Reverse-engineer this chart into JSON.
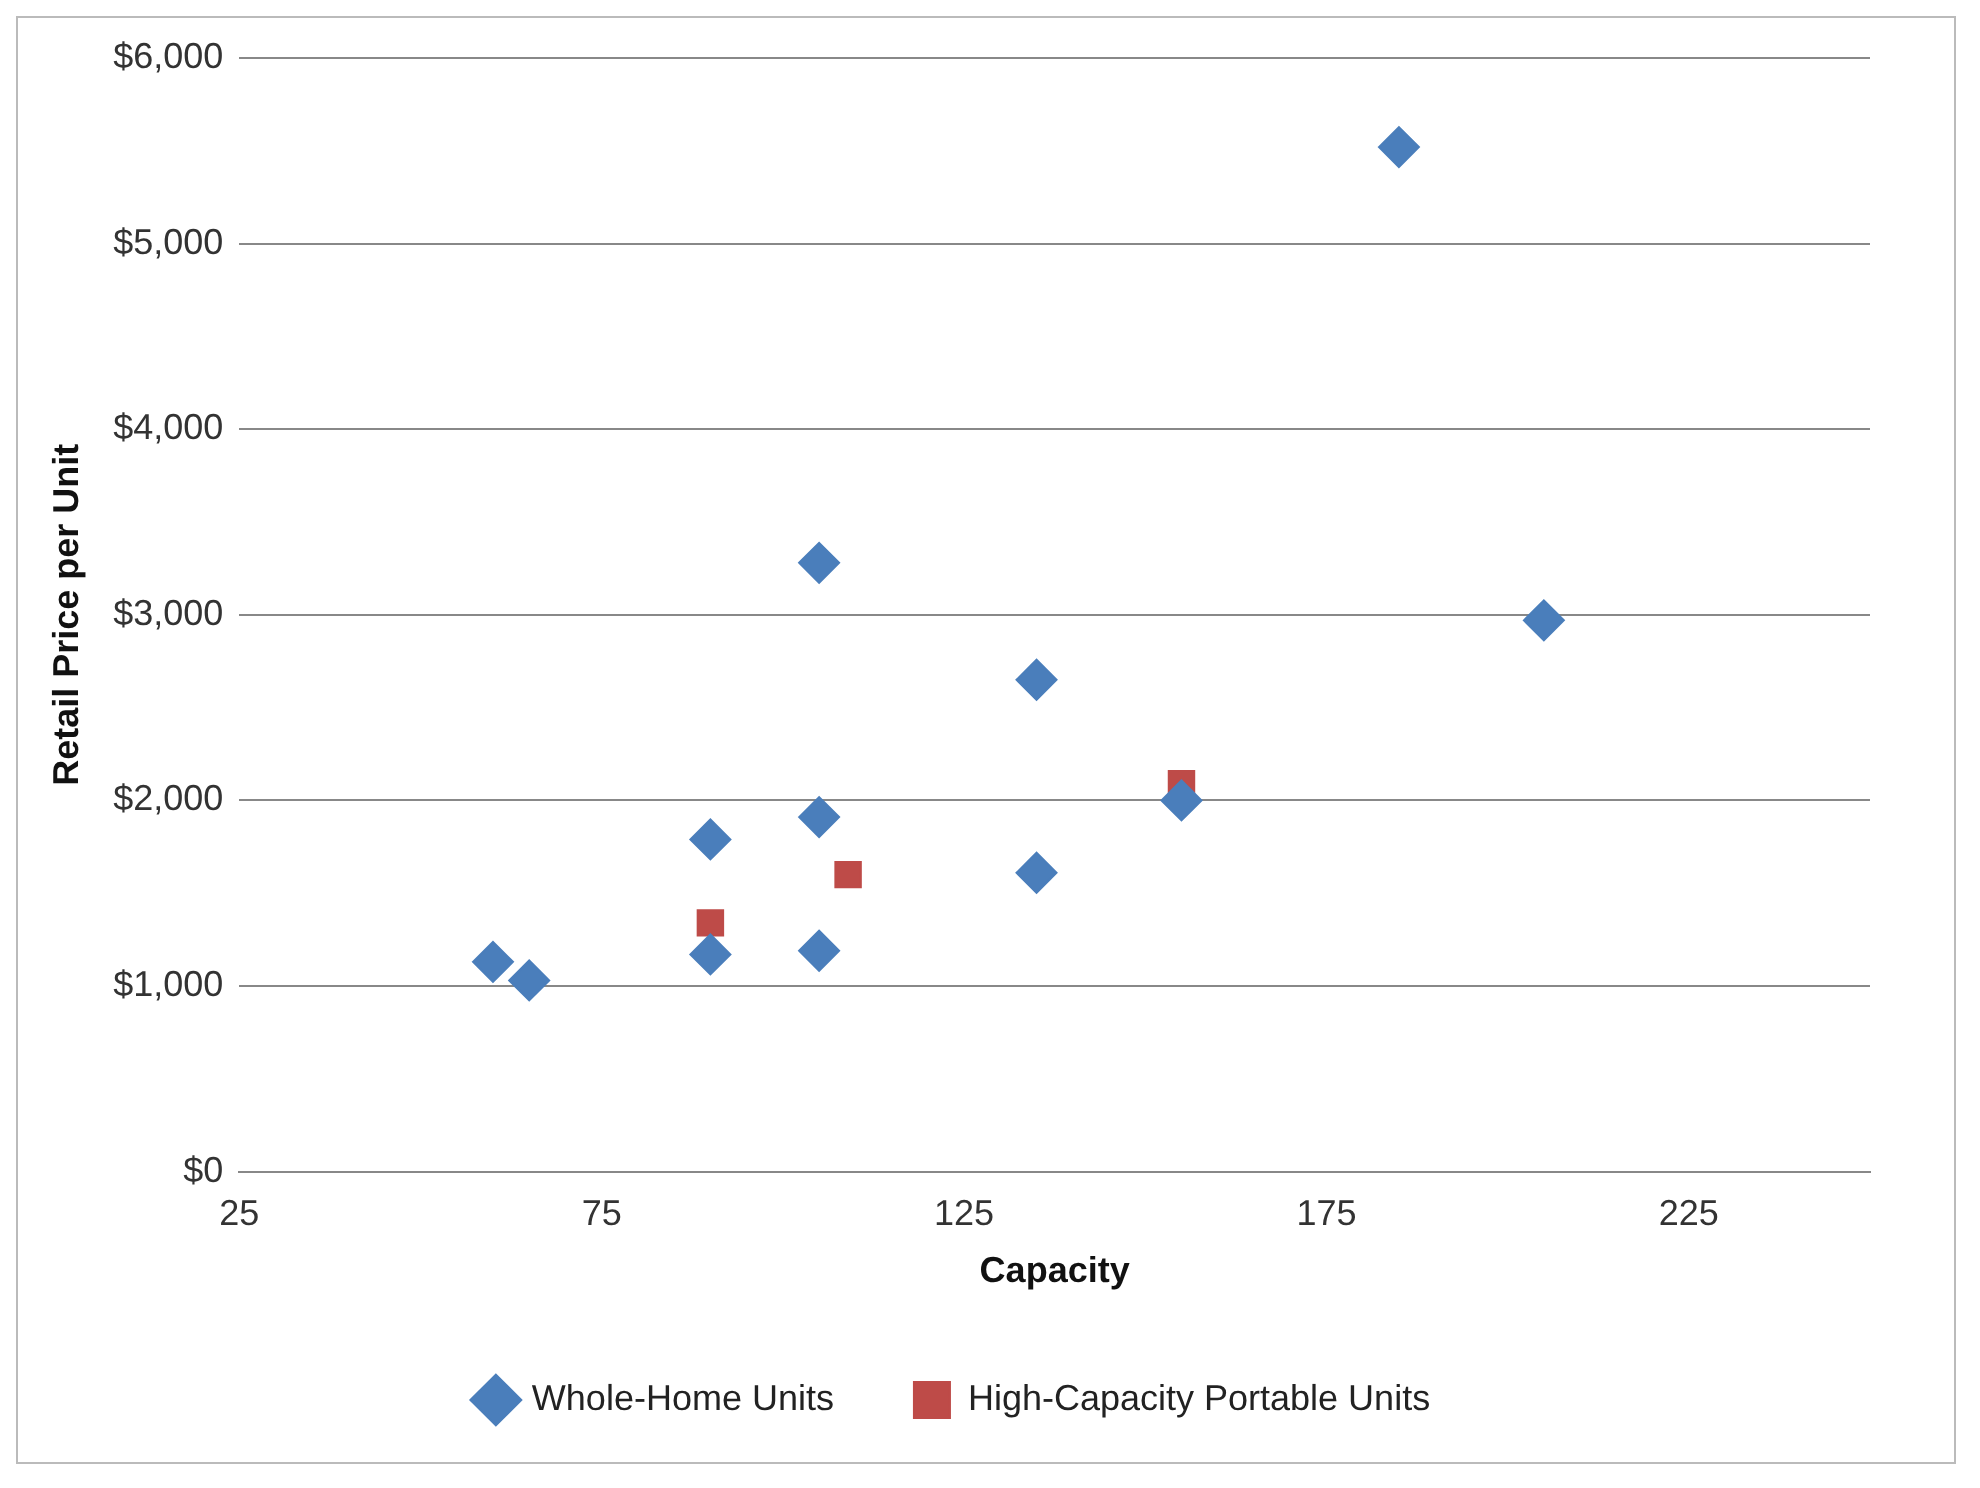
{
  "chart_data": {
    "type": "scatter",
    "xlabel": "Capacity",
    "ylabel": "Retail Price per Unit",
    "xlim": [
      25,
      250
    ],
    "xticks": [
      25,
      75,
      125,
      175,
      225
    ],
    "ylim": [
      0,
      6000
    ],
    "yticks": [
      {
        "value": 0,
        "label": "$0"
      },
      {
        "value": 1000,
        "label": "$1,000"
      },
      {
        "value": 2000,
        "label": "$2,000"
      },
      {
        "value": 3000,
        "label": "$3,000"
      },
      {
        "value": 4000,
        "label": "$4,000"
      },
      {
        "value": 5000,
        "label": "$5,000"
      },
      {
        "value": 6000,
        "label": "$6,000"
      }
    ],
    "grid": "y",
    "legend": "bottom",
    "series": [
      {
        "name": "Whole-Home Units",
        "color": "#4a7ebb",
        "marker": "diamond",
        "x": [
          60,
          65,
          90,
          90,
          105,
          105,
          105,
          135,
          135,
          155,
          185,
          205
        ],
        "values": [
          1130,
          1030,
          1790,
          1170,
          3280,
          1910,
          1190,
          2650,
          1610,
          2000,
          5520,
          2970
        ]
      },
      {
        "name": "High-Capacity Portable Units",
        "color": "#be4b48",
        "marker": "square",
        "x": [
          90,
          109,
          155
        ],
        "values": [
          1340,
          1600,
          2090
        ]
      }
    ]
  }
}
